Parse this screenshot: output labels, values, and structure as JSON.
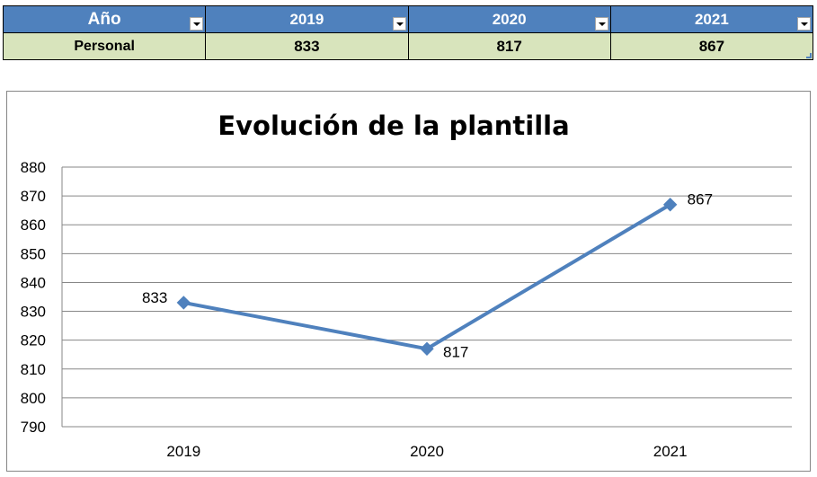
{
  "table": {
    "header": [
      "Año",
      "2019",
      "2020",
      "2021"
    ],
    "row_label": "Personal",
    "values": [
      "833",
      "817",
      "867"
    ]
  },
  "chart_data": {
    "type": "line",
    "title": "Evolución de la plantilla",
    "categories": [
      "2019",
      "2020",
      "2021"
    ],
    "series": [
      {
        "values": [
          833,
          817,
          867
        ],
        "color": "#4f81bd"
      }
    ],
    "data_labels": [
      "833",
      "817",
      "867"
    ],
    "ylim": [
      790,
      880
    ],
    "ytick_step": 10,
    "yticks": [
      "790",
      "800",
      "810",
      "820",
      "830",
      "840",
      "850",
      "860",
      "870",
      "880"
    ],
    "grid": true,
    "legend": "none",
    "marker": "diamond"
  }
}
